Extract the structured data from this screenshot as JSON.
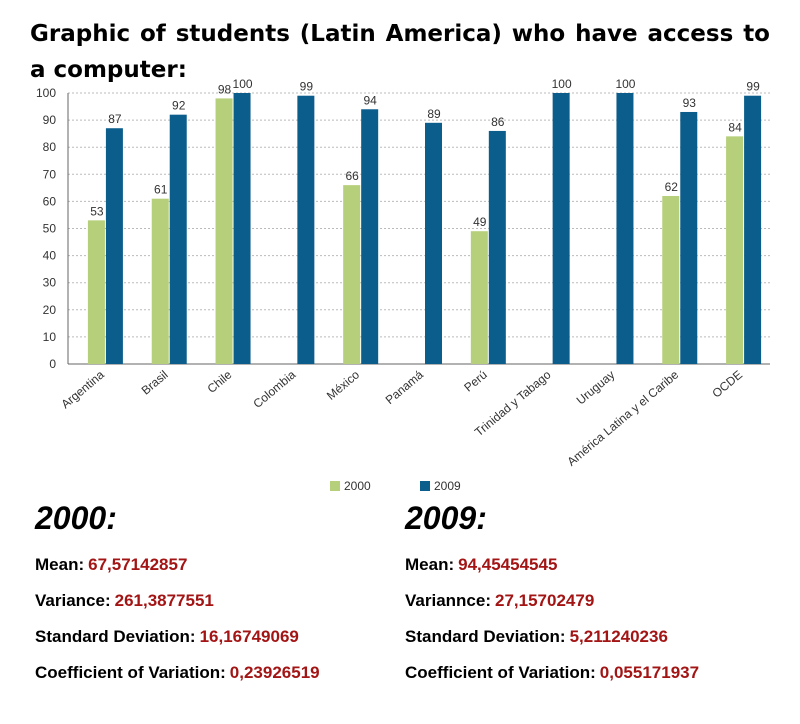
{
  "title": "Graphic of students (Latin America) who have access to a computer:",
  "chart_data": {
    "type": "bar",
    "categories": [
      "Argentina",
      "Brasil",
      "Chile",
      "Colombia",
      "México",
      "Panamá",
      "Perú",
      "Trinidad y Tabago",
      "Uruguay",
      "América Latina y el Caribe",
      "OCDE"
    ],
    "series": [
      {
        "name": "2000",
        "color": "#b5cf7a",
        "values": [
          53,
          61,
          98,
          null,
          66,
          null,
          49,
          null,
          null,
          62,
          84
        ]
      },
      {
        "name": "2009",
        "color": "#0b5d8c",
        "values": [
          87,
          92,
          100,
          99,
          94,
          89,
          86,
          100,
          100,
          93,
          99
        ]
      }
    ],
    "ylim": [
      0,
      100
    ],
    "yticks": [
      0,
      10,
      20,
      30,
      40,
      50,
      60,
      70,
      80,
      90,
      100
    ],
    "grid": true,
    "legend": "bottom"
  },
  "stats": [
    {
      "heading": "2000:",
      "rows": [
        {
          "label": "Mean:",
          "value": "67,57142857"
        },
        {
          "label": "Variance:",
          "value": "261,3877551"
        },
        {
          "label": "Standard Deviation:",
          "value": "16,16749069"
        },
        {
          "label": "Coefficient of Variation:",
          "value": "0,23926519"
        }
      ]
    },
    {
      "heading": "2009:",
      "rows": [
        {
          "label": "Mean:",
          "value": "94,45454545"
        },
        {
          "label": "Variannce:",
          "value": "27,15702479"
        },
        {
          "label": "Standard Deviation:",
          "value": "5,211240236"
        },
        {
          "label": "Coefficient of Variation:",
          "value": "0,055171937"
        }
      ]
    }
  ]
}
